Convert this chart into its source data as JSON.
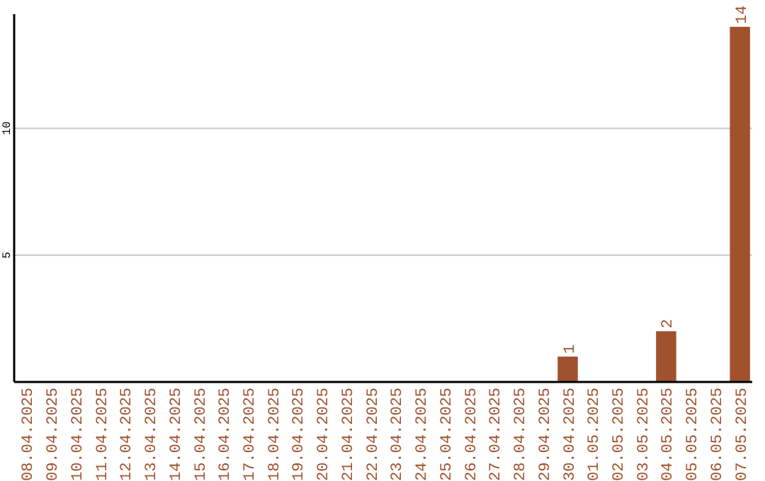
{
  "chart_data": {
    "type": "bar",
    "categories": [
      "08.04.2025",
      "09.04.2025",
      "10.04.2025",
      "11.04.2025",
      "12.04.2025",
      "13.04.2025",
      "14.04.2025",
      "15.04.2025",
      "16.04.2025",
      "17.04.2025",
      "18.04.2025",
      "19.04.2025",
      "20.04.2025",
      "21.04.2025",
      "22.04.2025",
      "23.04.2025",
      "24.04.2025",
      "25.04.2025",
      "26.04.2025",
      "27.04.2025",
      "28.04.2025",
      "29.04.2025",
      "30.04.2025",
      "01.05.2025",
      "02.05.2025",
      "03.05.2025",
      "04.05.2025",
      "05.05.2025",
      "06.05.2025",
      "07.05.2025"
    ],
    "values": [
      0,
      0,
      0,
      0,
      0,
      0,
      0,
      0,
      0,
      0,
      0,
      0,
      0,
      0,
      0,
      0,
      0,
      0,
      0,
      0,
      0,
      0,
      1,
      0,
      0,
      0,
      2,
      0,
      0,
      14
    ],
    "value_labels": [
      null,
      null,
      null,
      null,
      null,
      null,
      null,
      null,
      null,
      null,
      null,
      null,
      null,
      null,
      null,
      null,
      null,
      null,
      null,
      null,
      null,
      null,
      "1",
      null,
      null,
      null,
      "2",
      null,
      null,
      "14"
    ],
    "color": "#a0522d",
    "ylim": [
      0,
      14.5
    ],
    "yticks": [
      5,
      10
    ],
    "grid": "y"
  }
}
